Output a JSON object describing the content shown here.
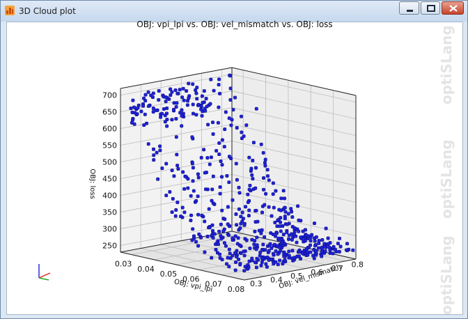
{
  "window": {
    "title": "3D Cloud plot"
  },
  "watermark": "optiSLang",
  "chart_data": {
    "type": "scatter",
    "title": "OBJ: vpi_lpi vs. OBJ: vel_mismatch vs. OBJ: loss",
    "x": {
      "label": "OBJ: vpi_lpi",
      "ticks": [
        "0.03",
        "0.04",
        "0.05",
        "0.06",
        "0.07",
        "0.08"
      ],
      "range": [
        0.025,
        0.08
      ]
    },
    "y": {
      "label": "OBJ: vel_mismatch",
      "ticks": [
        "0.3",
        "0.4",
        "0.5",
        "0.6",
        "0.7",
        "0.8"
      ],
      "range": [
        0.3,
        0.85
      ]
    },
    "z": {
      "label": "OBJ: loss",
      "ticks": [
        "250",
        "300",
        "350",
        "400",
        "450",
        "500",
        "550",
        "600",
        "650",
        "700"
      ],
      "range": [
        230,
        720
      ]
    },
    "grid": true,
    "marker_color": "#1f22d6",
    "marker_edge": "#07097a",
    "description_points": "Pareto-like cloud: loss decreases from ~700 at vpi_lpi≈0.028 to ~250 at vpi_lpi≈0.08; vel_mismatch spread 0.3–0.85"
  },
  "icons": {
    "app": "cloud-plot-icon",
    "axes": "axes-triad-icon"
  }
}
